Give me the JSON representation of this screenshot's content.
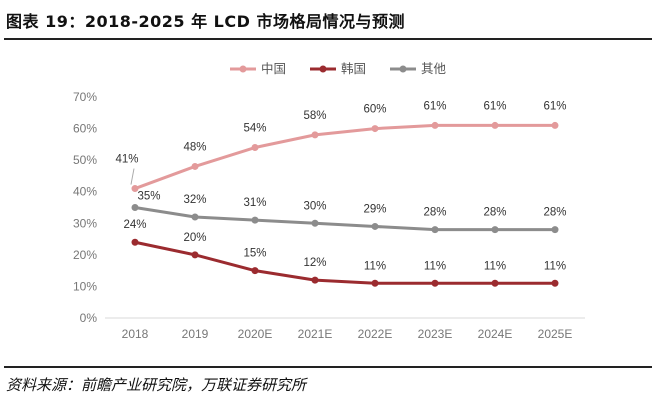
{
  "header": {
    "title": "图表 19：2018-2025 年 LCD 市场格局情况与预测"
  },
  "footer": {
    "source": "资料来源：前瞻产业研究院，万联证券研究所"
  },
  "chart_data": {
    "type": "line",
    "title": "",
    "xlabel": "",
    "ylabel": "",
    "categories": [
      "2018",
      "2019",
      "2020E",
      "2021E",
      "2022E",
      "2023E",
      "2024E",
      "2025E"
    ],
    "ylim": [
      0,
      70
    ],
    "yticks": [
      "0%",
      "10%",
      "20%",
      "30%",
      "40%",
      "50%",
      "60%",
      "70%"
    ],
    "grid": false,
    "legend_position": "top",
    "series": [
      {
        "name": "中国",
        "color": "#e39a9b",
        "values": [
          41,
          48,
          54,
          58,
          60,
          61,
          61,
          61
        ],
        "labels": [
          "41%",
          "48%",
          "54%",
          "58%",
          "60%",
          "61%",
          "61%",
          "61%"
        ]
      },
      {
        "name": "韩国",
        "color": "#9b2b2f",
        "values": [
          24,
          20,
          15,
          12,
          11,
          11,
          11,
          11
        ],
        "labels": [
          "24%",
          "20%",
          "15%",
          "12%",
          "11%",
          "11%",
          "11%",
          "11%"
        ]
      },
      {
        "name": "其他",
        "color": "#8c8c8c",
        "values": [
          35,
          32,
          31,
          30,
          29,
          28,
          28,
          28
        ],
        "labels": [
          "35%",
          "32%",
          "31%",
          "30%",
          "29%",
          "28%",
          "28%",
          "28%"
        ]
      }
    ]
  }
}
